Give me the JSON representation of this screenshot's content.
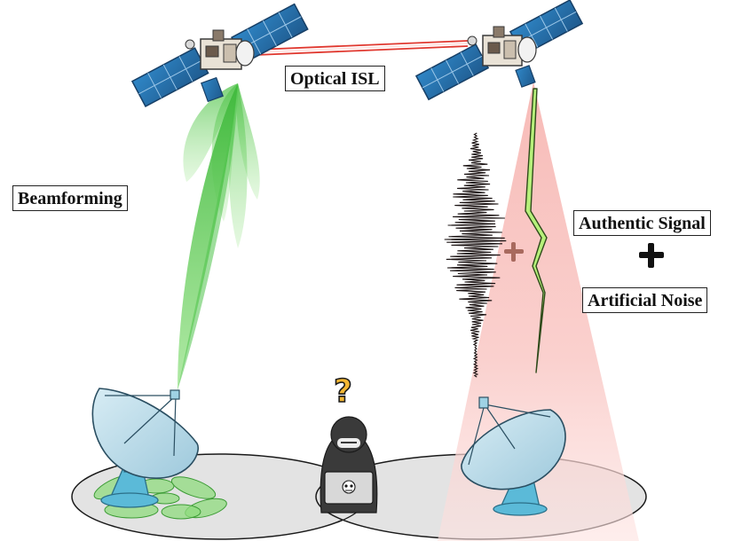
{
  "labels": {
    "optical_isl": "Optical ISL",
    "beamforming": "Beamforming",
    "authentic_signal": "Authentic Signal",
    "artificial_noise": "Artificial Noise"
  },
  "symbols": {
    "question_mark": "?"
  },
  "colors": {
    "laser_link": "#e0382f",
    "beam_green": "#4fc24a",
    "footprint_green": "#7cd46a",
    "noise_cone": "#f7b7b3",
    "noise_waveform": "#1c1414",
    "signal_bolt": "#b6f07a",
    "satellite_panel": "#2c6fa8",
    "dish": "#b9dbea",
    "dish_mount": "#5bbad8",
    "eavesdropper": "#3a3a3a",
    "coverage_area": "#e3e3e3"
  }
}
